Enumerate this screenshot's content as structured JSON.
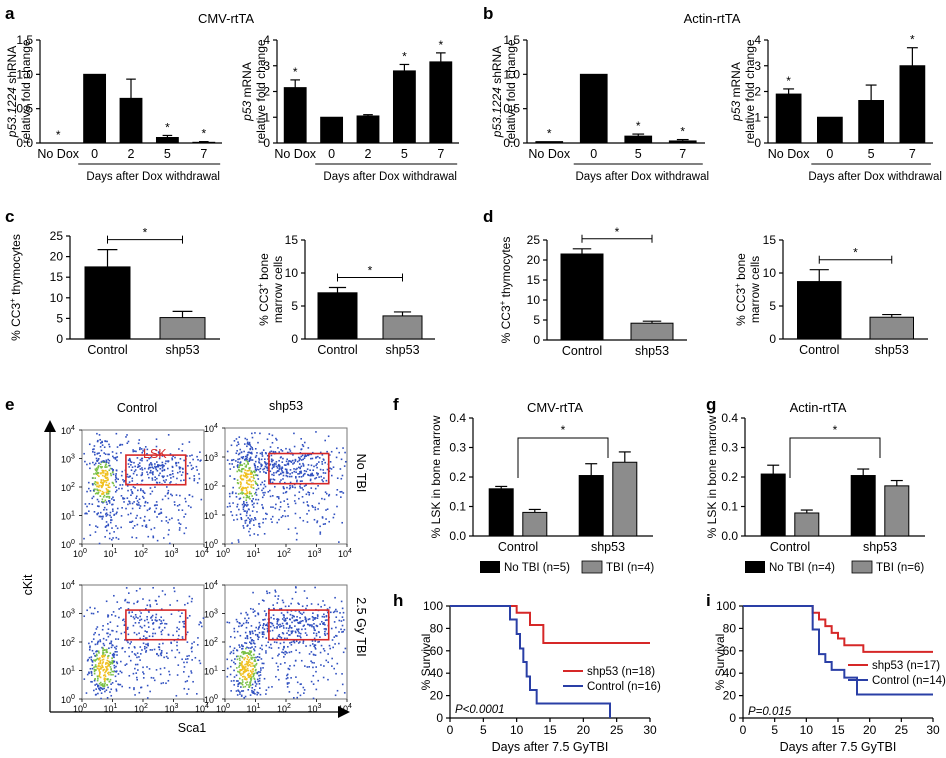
{
  "panel_labels": {
    "a": "a",
    "b": "b",
    "c": "c",
    "d": "d",
    "e": "e",
    "f": "f",
    "g": "g",
    "h": "h",
    "i": "i"
  },
  "titles": {
    "cmv": "CMV-rtTA",
    "actin": "Actin-rtTA",
    "f": "CMV-rtTA",
    "g": "Actin-rtTA"
  },
  "flow": {
    "col_control": "Control",
    "col_shp53": "shp53",
    "row_notbi": "No TBI",
    "row_tbi": "2.5 Gy TBI",
    "gate": "LSK",
    "xlabel": "Sca1",
    "ylabel": "cKit",
    "ticks": [
      "10",
      "10",
      "10",
      "10",
      "10"
    ],
    "exps": [
      "0",
      "1",
      "2",
      "3",
      "4"
    ]
  },
  "legends": {
    "f": {
      "no_tbi": "No TBI (n=5)",
      "tbi": "TBI (n=4)"
    },
    "g": {
      "no_tbi": "No TBI (n=4)",
      "tbi": "TBI (n=6)"
    },
    "h": {
      "shp53": "shp53 (n=18)",
      "control": "Control (n=16)",
      "p": "P<0.0001"
    },
    "i": {
      "shp53": "shp53 (n=17)",
      "control": "Control (n=14)",
      "p": "P=0.015"
    }
  },
  "colors": {
    "black": "#000000",
    "grey": "#8c8c8c",
    "red": "#d62828",
    "blue": "#2a3fa6"
  },
  "chart_data": [
    {
      "id": "a1",
      "panel": "a",
      "type": "bar",
      "title": "",
      "ylabel": [
        "p53.1224 shRNA",
        "relative fold change"
      ],
      "categories": [
        "No Dox",
        "0",
        "2",
        "5",
        "7"
      ],
      "values": [
        0.0,
        1.0,
        0.65,
        0.08,
        0.01
      ],
      "errors": [
        0,
        0,
        0.28,
        0.03,
        0.01
      ],
      "stars": [
        "*",
        "",
        "",
        "*",
        "*"
      ],
      "ylim": [
        0,
        1.5
      ],
      "yticks": [
        "0.0",
        "0.5",
        "1.0",
        "1.5"
      ],
      "xlabel": "Days after Dox withdrawal"
    },
    {
      "id": "a2",
      "panel": "a",
      "type": "bar",
      "ylabel": [
        "p53 mRNA",
        "relative fold change"
      ],
      "categories": [
        "No Dox",
        "0",
        "2",
        "5",
        "7"
      ],
      "values": [
        2.15,
        1.0,
        1.05,
        2.8,
        3.15
      ],
      "errors": [
        0.3,
        0,
        0.05,
        0.25,
        0.35
      ],
      "stars": [
        "*",
        "",
        "",
        "*",
        "*"
      ],
      "ylim": [
        0,
        4
      ],
      "yticks": [
        "0",
        "1",
        "2",
        "3",
        "4"
      ],
      "xlabel": "Days after Dox withdrawal"
    },
    {
      "id": "b1",
      "panel": "b",
      "type": "bar",
      "ylabel": [
        "p53.1224 shRNA",
        "relative fold change"
      ],
      "categories": [
        "No Dox",
        "0",
        "5",
        "7"
      ],
      "values": [
        0.02,
        1.0,
        0.1,
        0.03
      ],
      "errors": [
        0,
        0,
        0.03,
        0.02
      ],
      "stars": [
        "*",
        "",
        "*",
        "*"
      ],
      "ylim": [
        0,
        1.5
      ],
      "yticks": [
        "0.0",
        "0.5",
        "1.0",
        "1.5"
      ],
      "xlabel": "Days after Dox withdrawal"
    },
    {
      "id": "b2",
      "panel": "b",
      "type": "bar",
      "ylabel": [
        "p53 mRNA",
        "relative fold change"
      ],
      "categories": [
        "No Dox",
        "0",
        "5",
        "7"
      ],
      "values": [
        1.9,
        1.0,
        1.65,
        3.0
      ],
      "errors": [
        0.2,
        0,
        0.6,
        0.7
      ],
      "stars": [
        "*",
        "",
        "",
        "*"
      ],
      "ylim": [
        0,
        4
      ],
      "yticks": [
        "0",
        "1",
        "2",
        "3",
        "4"
      ],
      "xlabel": "Days after Dox withdrawal"
    },
    {
      "id": "c1",
      "panel": "c",
      "type": "bar",
      "ylabel": [
        "% CC3+ thymocytes"
      ],
      "categories": [
        "Control",
        "shp53"
      ],
      "values": [
        17.5,
        5.2
      ],
      "errors": [
        4.2,
        1.5
      ],
      "ylim": [
        0,
        25
      ],
      "yticks": [
        "0",
        "5",
        "10",
        "15",
        "20",
        "25"
      ],
      "sig": "*"
    },
    {
      "id": "c2",
      "panel": "c",
      "type": "bar",
      "ylabel": [
        "% CC3+ bone",
        "marrow cells"
      ],
      "categories": [
        "Control",
        "shp53"
      ],
      "values": [
        7.0,
        3.5
      ],
      "errors": [
        0.8,
        0.6
      ],
      "ylim": [
        0,
        15
      ],
      "yticks": [
        "0",
        "5",
        "10",
        "15"
      ],
      "sig": "*"
    },
    {
      "id": "d1",
      "panel": "d",
      "type": "bar",
      "ylabel": [
        "% CC3+ thymocytes"
      ],
      "categories": [
        "Control",
        "shp53"
      ],
      "values": [
        21.5,
        4.2
      ],
      "errors": [
        1.3,
        0.5
      ],
      "ylim": [
        0,
        25
      ],
      "yticks": [
        "0",
        "5",
        "10",
        "15",
        "20",
        "25"
      ],
      "sig": "*"
    },
    {
      "id": "d2",
      "panel": "d",
      "type": "bar",
      "ylabel": [
        "% CC3+ bone",
        "marrow cells"
      ],
      "categories": [
        "Control",
        "shp53"
      ],
      "values": [
        8.7,
        3.3
      ],
      "errors": [
        1.8,
        0.4
      ],
      "ylim": [
        0,
        15
      ],
      "yticks": [
        "0",
        "5",
        "10",
        "15"
      ],
      "sig": "*"
    },
    {
      "id": "f",
      "panel": "f",
      "type": "bar",
      "ylabel": [
        "% LSK in bone marrow"
      ],
      "groups": [
        "Control",
        "shp53"
      ],
      "series": [
        {
          "name": "No TBI",
          "values": [
            0.16,
            0.205
          ],
          "errors": [
            0.008,
            0.04
          ]
        },
        {
          "name": "TBI",
          "values": [
            0.08,
            0.25
          ],
          "errors": [
            0.01,
            0.035
          ]
        }
      ],
      "ylim": [
        0,
        0.4
      ],
      "yticks": [
        "0.0",
        "0.1",
        "0.2",
        "0.3",
        "0.4"
      ],
      "sig": "*"
    },
    {
      "id": "g",
      "panel": "g",
      "type": "bar",
      "ylabel": [
        "% LSK in bone marrow"
      ],
      "groups": [
        "Control",
        "shp53"
      ],
      "series": [
        {
          "name": "No TBI",
          "values": [
            0.21,
            0.205
          ],
          "errors": [
            0.03,
            0.022
          ]
        },
        {
          "name": "TBI",
          "values": [
            0.078,
            0.17
          ],
          "errors": [
            0.01,
            0.018
          ]
        }
      ],
      "ylim": [
        0,
        0.4
      ],
      "yticks": [
        "0.0",
        "0.1",
        "0.2",
        "0.3",
        "0.4"
      ],
      "sig": "*"
    },
    {
      "id": "h",
      "panel": "h",
      "type": "line",
      "ylabel": "% Survival",
      "xlabel": "Days after 7.5 GyTBI",
      "xlim": [
        0,
        30
      ],
      "ylim": [
        0,
        100
      ],
      "xticks": [
        "0",
        "5",
        "10",
        "15",
        "20",
        "25",
        "30"
      ],
      "yticks": [
        "0",
        "20",
        "40",
        "60",
        "80",
        "100"
      ],
      "series": [
        {
          "name": "shp53",
          "x": [
            0,
            10,
            12,
            14,
            30
          ],
          "y": [
            100,
            94,
            83,
            67,
            67
          ]
        },
        {
          "name": "Control",
          "x": [
            0,
            9,
            10,
            10.5,
            11,
            11.5,
            12,
            13,
            24,
            24
          ],
          "y": [
            100,
            88,
            75,
            62,
            50,
            37,
            25,
            13,
            6,
            0
          ]
        }
      ]
    },
    {
      "id": "i",
      "panel": "i",
      "type": "line",
      "ylabel": "% Survival",
      "xlabel": "Days after 7.5 GyTBI",
      "xlim": [
        0,
        30
      ],
      "ylim": [
        0,
        100
      ],
      "xticks": [
        "0",
        "5",
        "10",
        "15",
        "20",
        "25",
        "30"
      ],
      "yticks": [
        "0",
        "20",
        "40",
        "60",
        "80",
        "100"
      ],
      "series": [
        {
          "name": "shp53",
          "x": [
            0,
            11,
            12,
            13,
            14,
            15,
            16,
            17,
            19,
            30
          ],
          "y": [
            100,
            94,
            88,
            82,
            76,
            71,
            65,
            65,
            59,
            59
          ]
        },
        {
          "name": "Control",
          "x": [
            0,
            11,
            12,
            13,
            14,
            16,
            18,
            30
          ],
          "y": [
            100,
            79,
            57,
            50,
            43,
            36,
            21,
            21
          ]
        }
      ]
    }
  ]
}
